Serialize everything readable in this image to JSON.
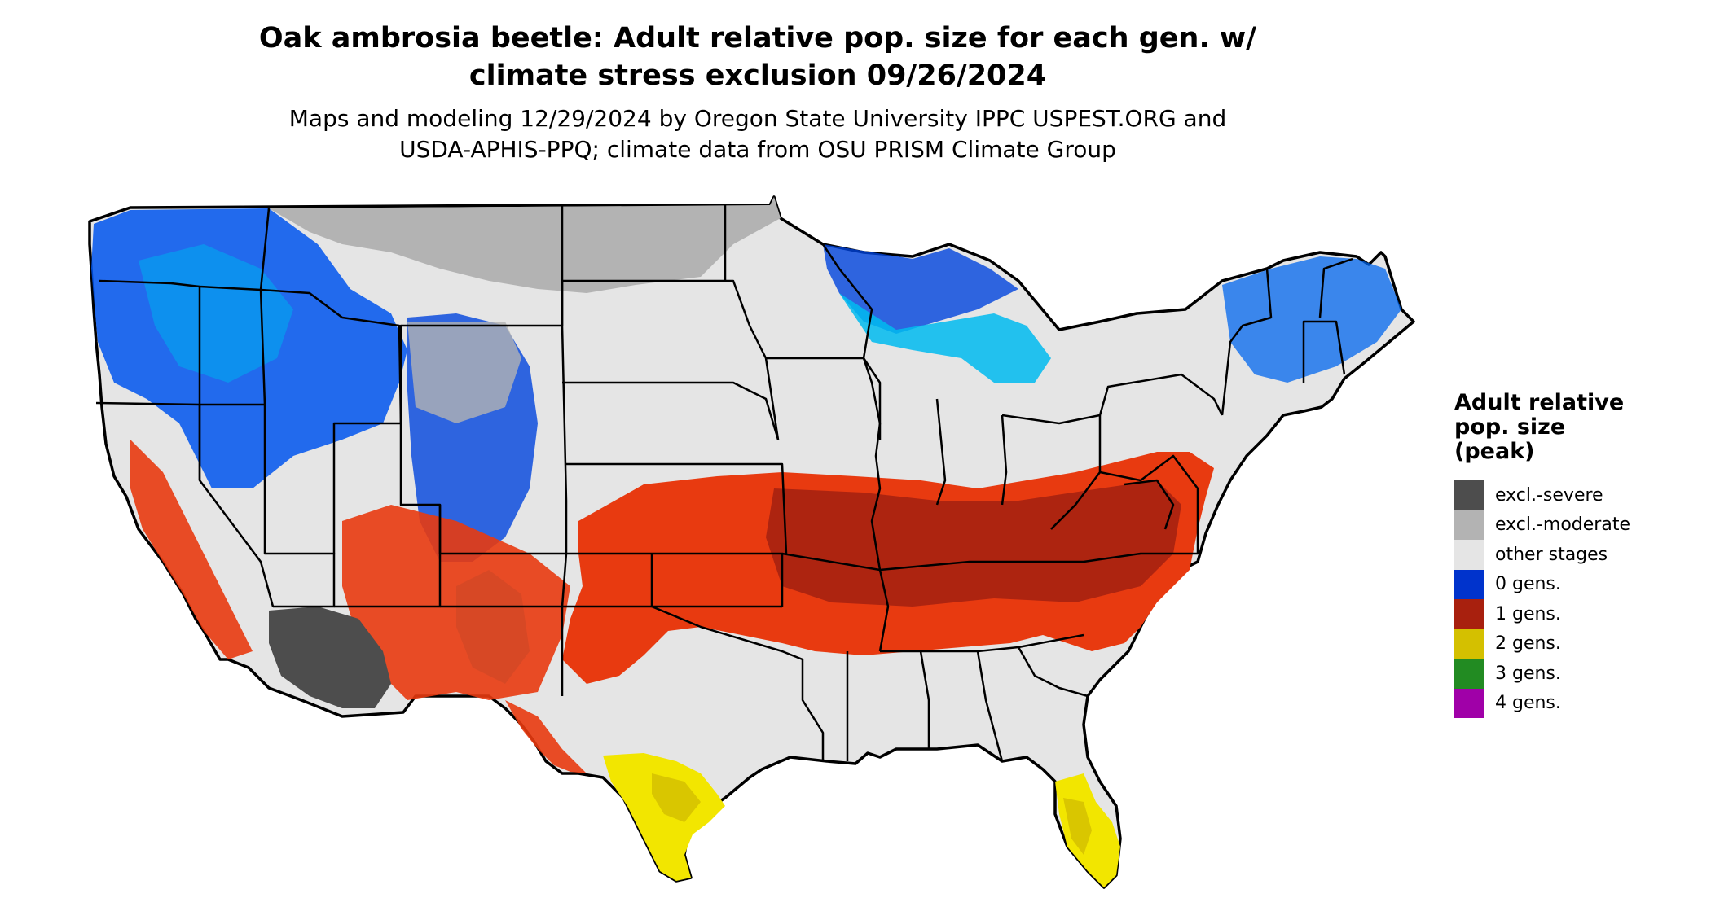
{
  "title_line1": "Oak ambrosia beetle: Adult relative pop. size for each gen. w/",
  "title_line2": "climate stress exclusion 09/26/2024",
  "subtitle_line1": "Maps and modeling 12/29/2024 by Oregon State University IPPC USPEST.ORG and",
  "subtitle_line2": "USDA-APHIS-PPQ; climate data from OSU PRISM Climate Group",
  "legend": {
    "title_line1": "Adult relative",
    "title_line2": "pop. size",
    "title_line3": "(peak)",
    "items": [
      {
        "label": "excl.-severe",
        "color": "#4d4d4d"
      },
      {
        "label": "excl.-moderate",
        "color": "#b3b3b3"
      },
      {
        "label": "other stages",
        "color": "#e5e5e5"
      },
      {
        "label": "0 gens.",
        "color": "#0033cc"
      },
      {
        "label": "1 gens.",
        "color": "#a8200e"
      },
      {
        "label": "2 gens.",
        "color": "#d4c000"
      },
      {
        "label": "3 gens.",
        "color": "#228b22"
      },
      {
        "label": "4 gens.",
        "color": "#a000a8"
      }
    ]
  }
}
